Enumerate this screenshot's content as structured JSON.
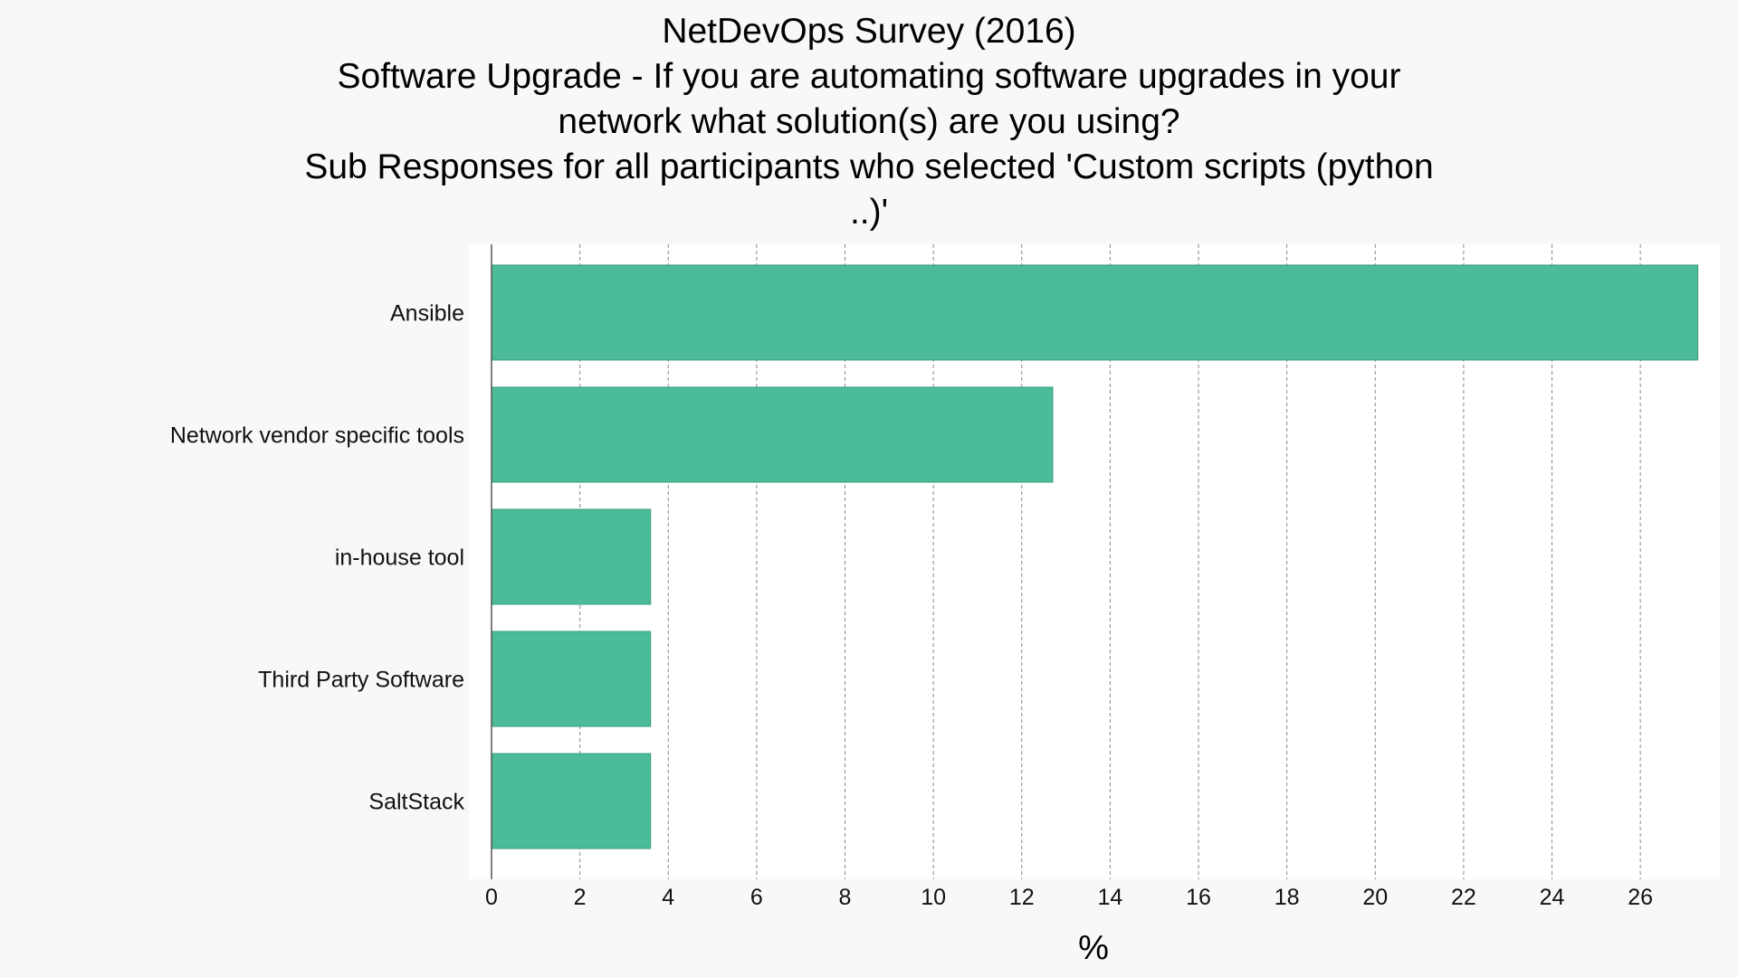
{
  "chart_data": {
    "type": "bar",
    "orientation": "horizontal",
    "title_lines": [
      "NetDevOps Survey (2016)",
      "Software Upgrade - If you are automating software upgrades in your",
      "network what solution(s) are you using?",
      "Sub Responses for all participants who selected 'Custom scripts (python",
      "..)'"
    ],
    "categories": [
      "Ansible",
      "Network vendor specific tools",
      "in-house tool",
      "Third Party Software",
      "SaltStack"
    ],
    "values": [
      27.3,
      12.7,
      3.6,
      3.6,
      3.6
    ],
    "xlabel": "%",
    "ylabel": "",
    "xlim": [
      0,
      27.8
    ],
    "xticks": [
      0,
      2,
      4,
      6,
      8,
      10,
      12,
      14,
      16,
      18,
      20,
      22,
      24,
      26
    ],
    "grid": "vertical dashed",
    "bar_color": "#4bbb99",
    "bar_edge_color": "#3a9c7e",
    "plot_background": "#ffffff",
    "page_background": "#f8f8f8"
  }
}
